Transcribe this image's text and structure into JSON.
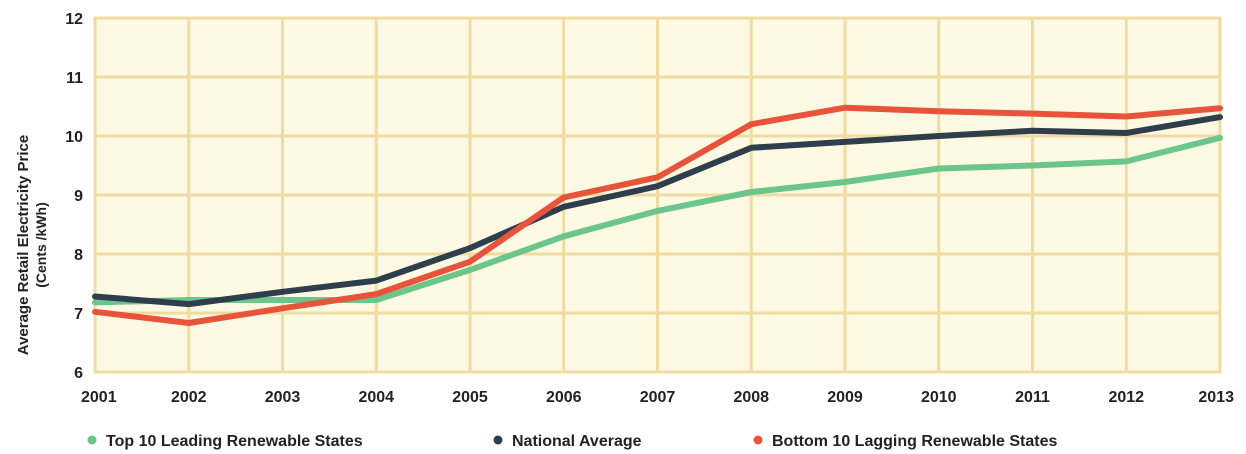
{
  "chart_data": {
    "type": "line",
    "title": "",
    "xlabel": "",
    "ylabel": "Average Retail Electricity Price",
    "ylabel_unit": "(Cents /kWh)",
    "x": [
      "2001",
      "2002",
      "2003",
      "2004",
      "2005",
      "2006",
      "2007",
      "2008",
      "2009",
      "2010",
      "2011",
      "2012",
      "2013"
    ],
    "ylim": [
      6,
      12
    ],
    "yticks": [
      "6",
      "7",
      "8",
      "9",
      "10",
      "11",
      "12"
    ],
    "grid": true,
    "plot_background": "#fdf9e3",
    "grid_color": "#f0dca0",
    "legend_position": "bottom",
    "series": [
      {
        "name": "Top 10 Leading Renewable States",
        "color": "#6cc58a",
        "values": [
          7.18,
          7.22,
          7.22,
          7.22,
          7.73,
          8.3,
          8.73,
          9.05,
          9.22,
          9.45,
          9.5,
          9.57,
          9.97
        ]
      },
      {
        "name": "National Average",
        "color": "#2f3e4d",
        "values": [
          7.28,
          7.15,
          7.36,
          7.55,
          8.1,
          8.8,
          9.15,
          9.8,
          9.9,
          10.0,
          10.09,
          10.05,
          10.32
        ]
      },
      {
        "name": "Bottom 10 Lagging Renewable States",
        "color": "#e8533b",
        "values": [
          7.02,
          6.83,
          7.08,
          7.32,
          7.87,
          8.96,
          9.3,
          10.2,
          10.48,
          10.42,
          10.38,
          10.33,
          10.47
        ]
      }
    ]
  }
}
